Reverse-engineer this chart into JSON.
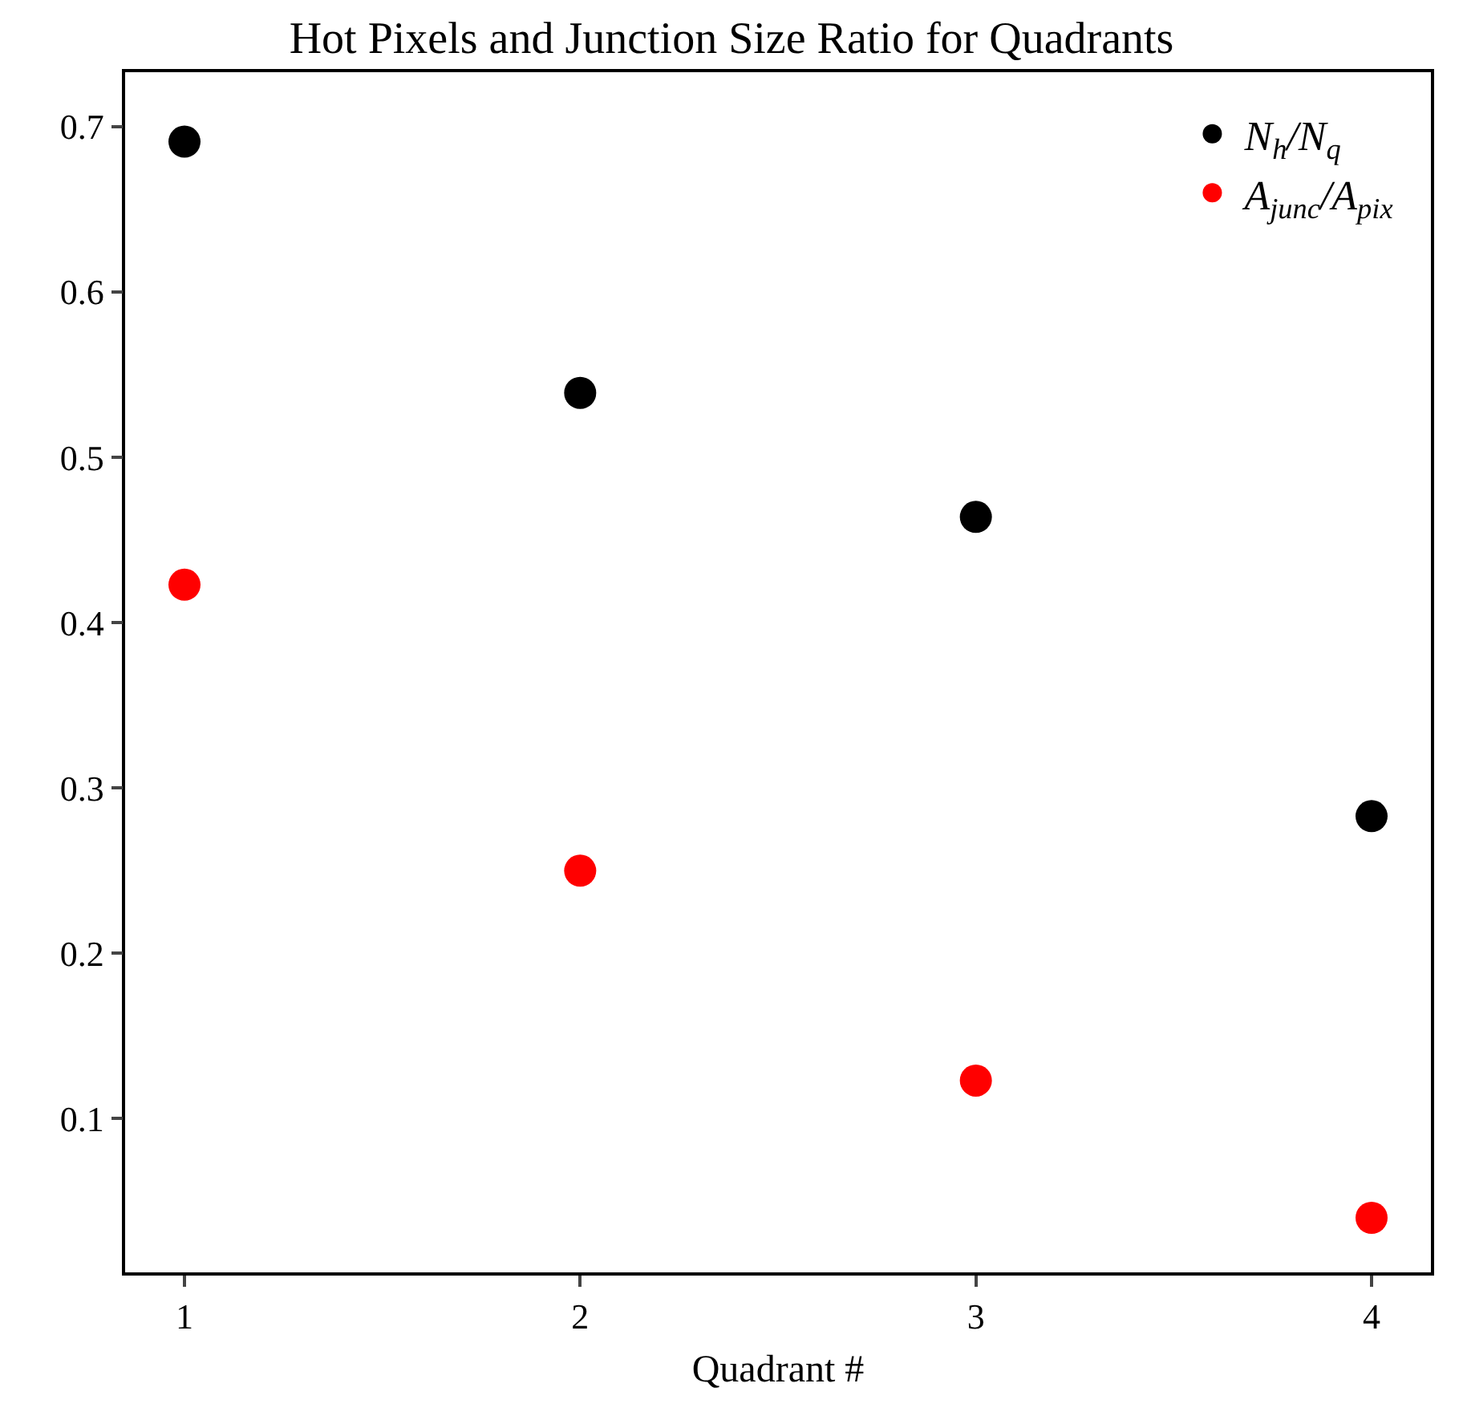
{
  "chart_data": {
    "type": "scatter",
    "title": "Hot Pixels and Junction Size Ratio for Quadrants",
    "xlabel": "Quadrant #",
    "x": [
      1,
      2,
      3,
      4
    ],
    "series": [
      {
        "name": "N$_{h}$/N$_{q}$",
        "color": "#000000",
        "values": [
          0.691,
          0.539,
          0.464,
          0.283
        ]
      },
      {
        "name": "A$_{junc}$/A$_{pix}$",
        "color": "#ff0000",
        "values": [
          0.423,
          0.25,
          0.123,
          0.04
        ]
      }
    ],
    "xlim": [
      0.85,
      4.15
    ],
    "xticks": [
      1,
      2,
      3,
      4
    ],
    "ylim": [
      0.007,
      0.733
    ],
    "yticks": [
      0.1,
      0.2,
      0.3,
      0.4,
      0.5,
      0.6,
      0.7
    ],
    "grid": false,
    "legend": "top right",
    "marker": "circle"
  }
}
